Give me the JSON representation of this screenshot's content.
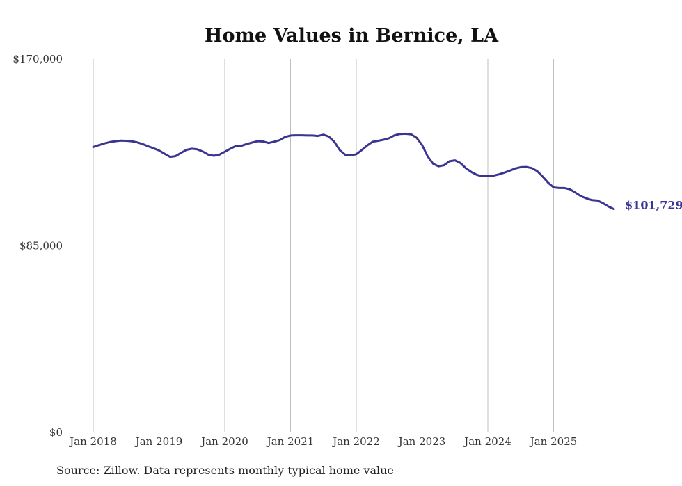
{
  "chart_data": {
    "type": "line",
    "title": "Home Values in Bernice, LA",
    "xlabel": "",
    "ylabel": "",
    "ylim": [
      0,
      170000
    ],
    "y_ticks": [
      0,
      85000,
      170000
    ],
    "y_tick_labels": [
      "$0",
      "$85,000",
      "$170,000"
    ],
    "x_tick_labels": [
      "Jan 2018",
      "Jan 2019",
      "Jan 2020",
      "Jan 2021",
      "Jan 2022",
      "Jan 2023",
      "Jan 2024",
      "Jan 2025"
    ],
    "x_start": "Jan 2018",
    "line_color": "#3b3591",
    "grid": "vertical",
    "end_label": "$101,729",
    "series": [
      {
        "name": "Typical home value",
        "values": [
          130000,
          130800,
          131600,
          132200,
          132600,
          132900,
          132800,
          132600,
          132100,
          131300,
          130300,
          129400,
          128400,
          126900,
          125500,
          125800,
          127300,
          128700,
          129200,
          128900,
          127900,
          126500,
          126000,
          126500,
          127800,
          129200,
          130400,
          130500,
          131300,
          132000,
          132600,
          132500,
          131800,
          132400,
          133100,
          134500,
          135200,
          135300,
          135300,
          135200,
          135200,
          135000,
          135600,
          134700,
          132300,
          128500,
          126400,
          126200,
          126700,
          128600,
          130700,
          132400,
          132800,
          133300,
          134000,
          135300,
          135900,
          136000,
          135700,
          134200,
          130900,
          125800,
          122400,
          121200,
          121700,
          123500,
          123900,
          122700,
          120300,
          118600,
          117300,
          116700,
          116700,
          116900,
          117500,
          118300,
          119200,
          120200,
          120800,
          120900,
          120400,
          119000,
          116500,
          113700,
          111600,
          111300,
          111300,
          110700,
          109200,
          107600,
          106600,
          105800,
          105600,
          104400,
          102900,
          101729
        ]
      }
    ]
  },
  "footer": {
    "source": "Source: Zillow. Data represents monthly typical home value"
  }
}
